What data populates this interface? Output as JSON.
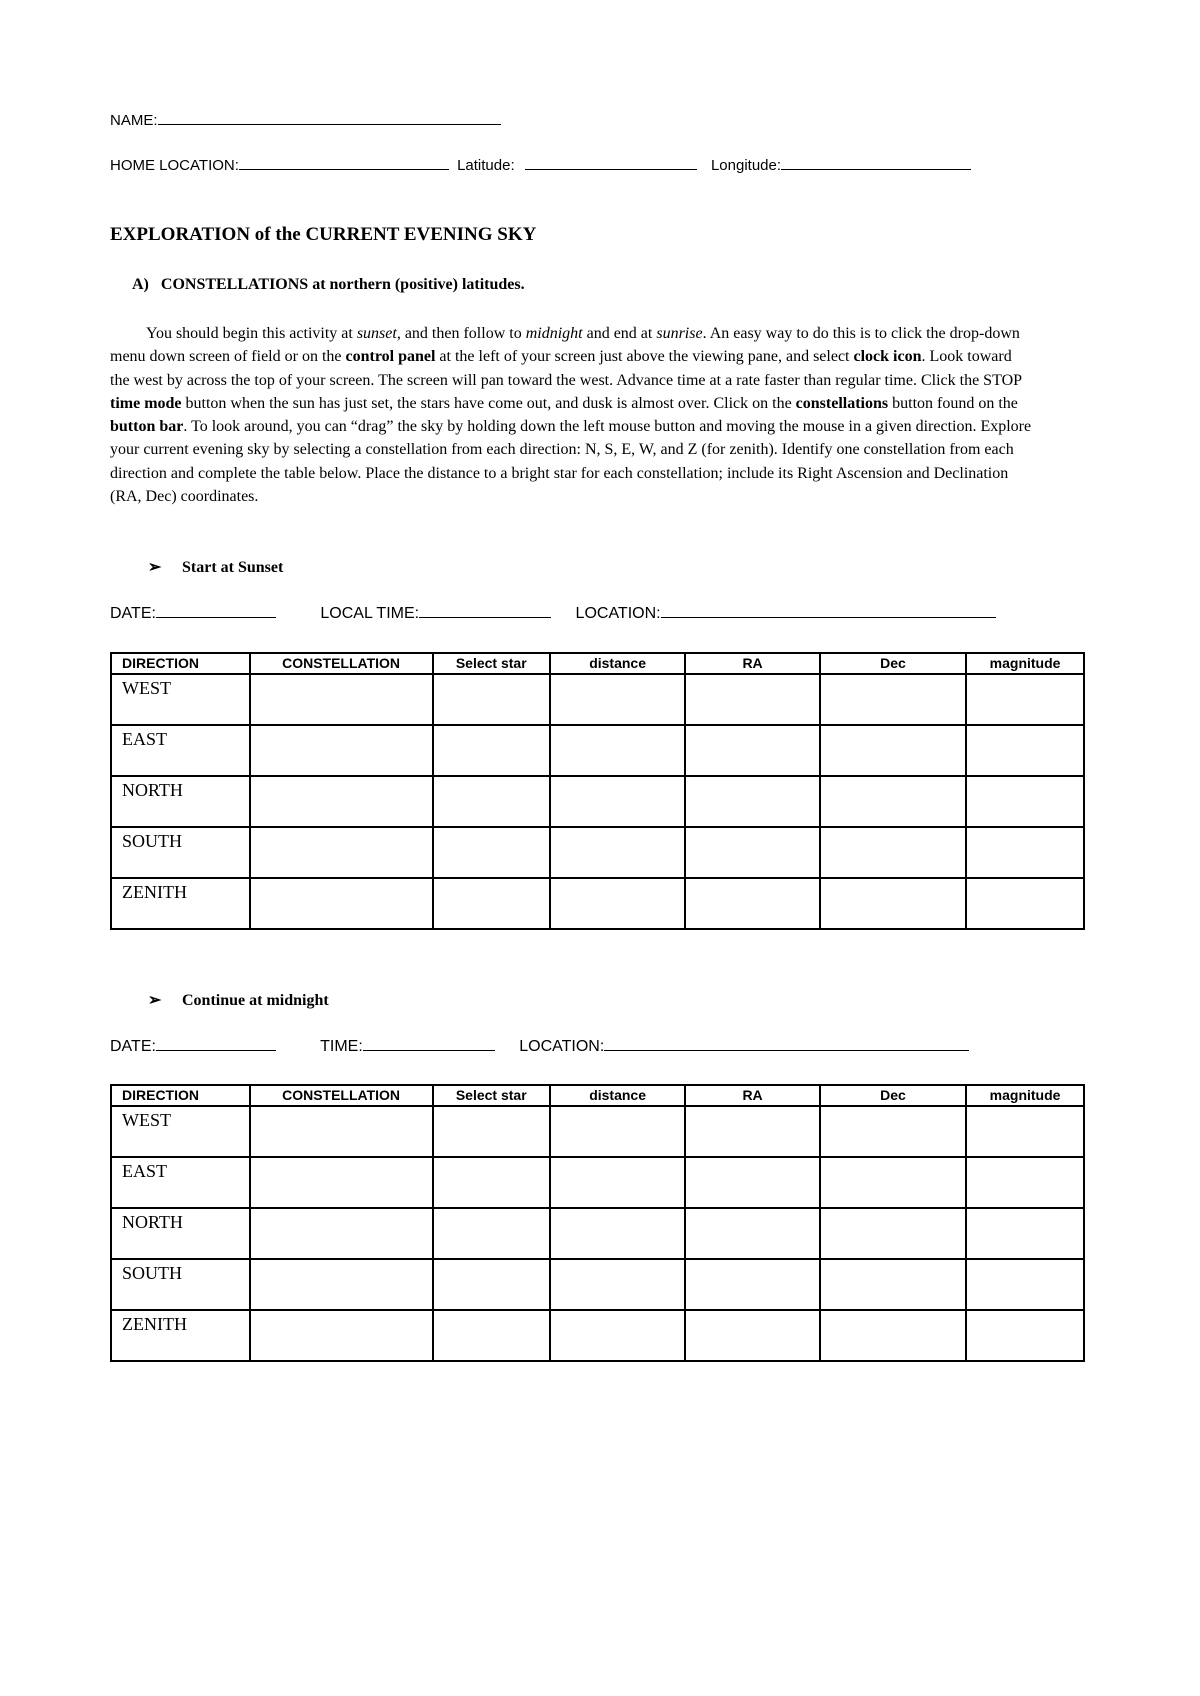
{
  "header": {
    "name_label": "NAME:",
    "home_location_label": "HOME LOCATION:",
    "latitude_label": "Latitude:",
    "longitude_label": "Longitude:"
  },
  "title": "EXPLORATION of the CURRENT EVENING SKY",
  "section_a": "A)   CONSTELLATIONS at northern (positive) latitudes.",
  "section1": {
    "bullet": "Start at Sunset",
    "date_label": "DATE:",
    "time_label": "LOCAL TIME:",
    "location_label": "LOCATION:"
  },
  "section2": {
    "bullet": "Continue at midnight",
    "date_label": "DATE:",
    "time_label": "TIME:",
    "location_label": "LOCATION:"
  },
  "table": {
    "headers": [
      "DIRECTION",
      "CONSTELLATION",
      "Select star",
      "distance",
      "RA",
      "Dec",
      "magnitude"
    ],
    "rows": [
      "WEST",
      "EAST",
      "NORTH",
      "SOUTH",
      "ZENITH"
    ]
  },
  "icons": {
    "bullet": "arrowhead-bullet-icon"
  }
}
